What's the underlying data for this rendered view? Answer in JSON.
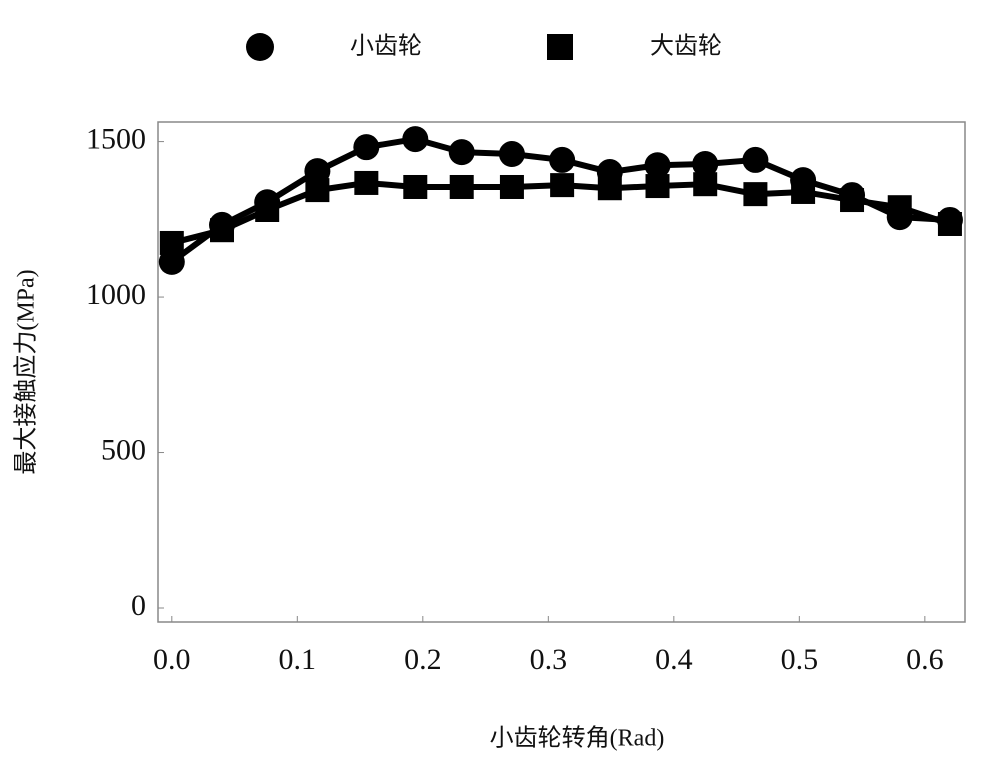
{
  "chart_data": {
    "type": "line",
    "x_label": "小齿轮转角(Rad)",
    "y_label": "最大接触应力(MPa)",
    "x": [
      0,
      0.04,
      0.076,
      0.116,
      0.155,
      0.194,
      0.231,
      0.271,
      0.311,
      0.349,
      0.387,
      0.425,
      0.465,
      0.503,
      0.542,
      0.58,
      0.62
    ],
    "series": [
      {
        "name": "小齿轮",
        "color": "#000000",
        "marker": "circle",
        "values": [
          1113,
          1232,
          1305,
          1405,
          1482,
          1508,
          1466,
          1460,
          1441,
          1402,
          1424,
          1428,
          1441,
          1376,
          1328,
          1257,
          1248
        ]
      },
      {
        "name": "大齿轮",
        "color": "#000000",
        "marker": "square",
        "values": [
          1174,
          1215,
          1280,
          1344,
          1367,
          1354,
          1354,
          1354,
          1360,
          1350,
          1357,
          1363,
          1331,
          1338,
          1312,
          1289,
          1235
        ]
      }
    ],
    "xlim": [
      -0.011,
      0.632
    ],
    "ylim": [
      -45,
      1563
    ],
    "xticks": [
      {
        "value": 0,
        "label": "0.0"
      },
      0.1,
      0.2,
      0.3,
      0.4,
      0.5,
      0.6
    ],
    "yticks": [
      0,
      500,
      1000,
      1500
    ],
    "legend": "top"
  }
}
